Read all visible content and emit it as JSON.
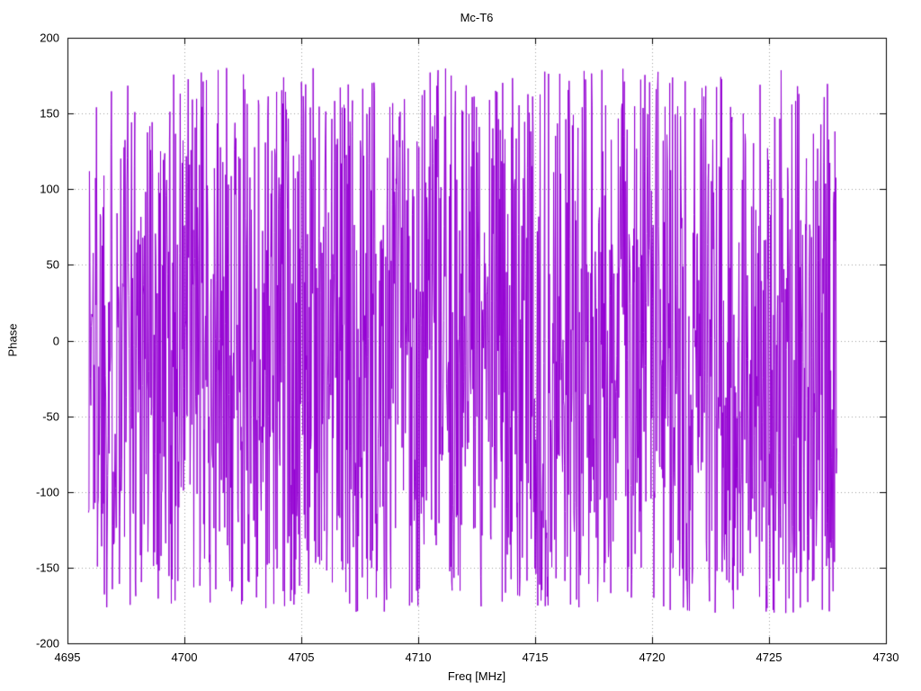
{
  "chart_data": {
    "type": "line",
    "title": "Mc-T6",
    "xlabel": "Freq [MHz]",
    "ylabel": "Phase",
    "xlim": [
      4695,
      4730
    ],
    "ylim": [
      -200,
      200
    ],
    "x_ticks": [
      4695,
      4700,
      4705,
      4710,
      4715,
      4720,
      4725,
      4730
    ],
    "y_ticks": [
      -200,
      -150,
      -100,
      -50,
      0,
      50,
      100,
      150,
      200
    ],
    "grid": true,
    "grid_style": "dotted",
    "legend_position": "none",
    "colors": {
      "line": "#9400d3",
      "grid": "#a0a0a0",
      "axis": "#000000",
      "background": "#ffffff"
    },
    "series": [
      {
        "name": "phase",
        "color": "#9400d3",
        "signal": "wrapped-random-phase",
        "x_start": 4695.9,
        "x_end": 4727.9,
        "n_points": 1600,
        "y_min": -180,
        "y_max": 180,
        "seed": 1337
      }
    ]
  }
}
